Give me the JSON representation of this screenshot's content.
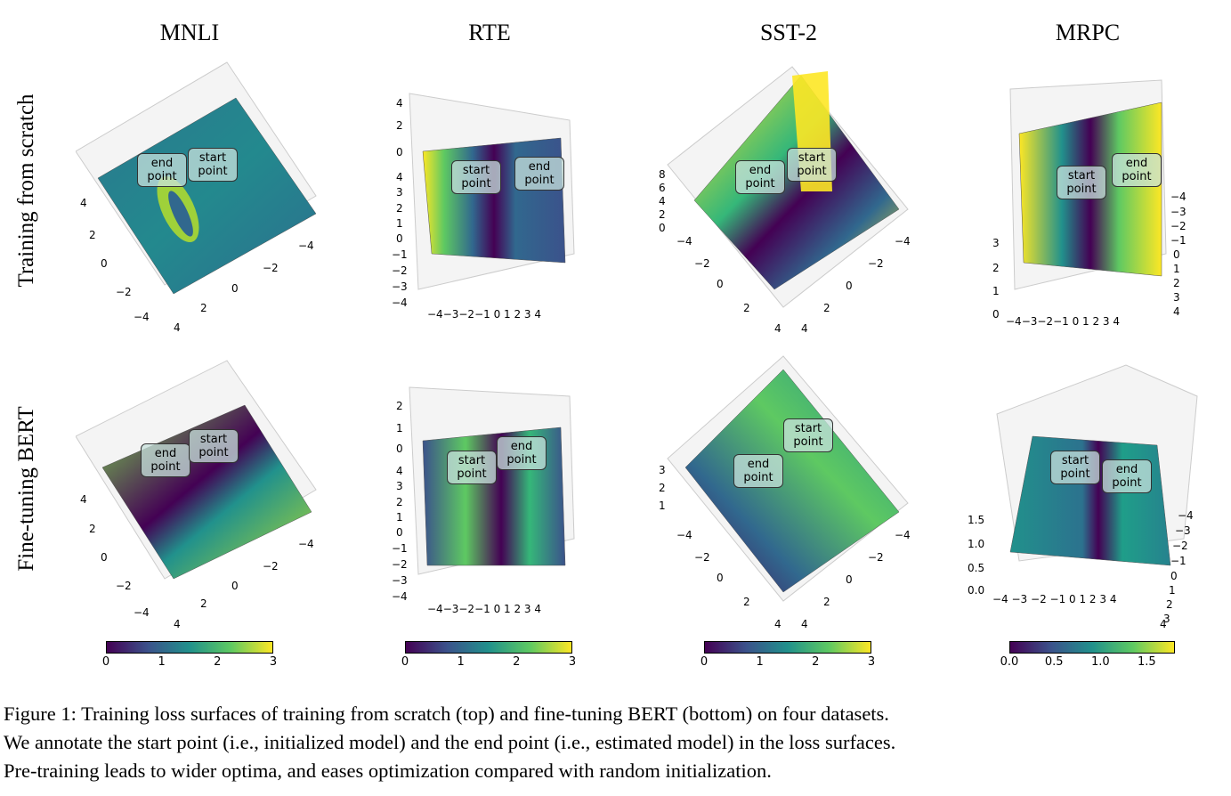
{
  "columns": [
    "MNLI",
    "RTE",
    "SST-2",
    "MRPC"
  ],
  "rows": [
    "Training from scratch",
    "Fine-tuning BERT"
  ],
  "annotations": {
    "start": "start point",
    "end": "end point"
  },
  "colorbars": [
    {
      "ticks": [
        "0",
        "1",
        "2",
        "3"
      ]
    },
    {
      "ticks": [
        "0",
        "1",
        "2",
        "3"
      ]
    },
    {
      "ticks": [
        "0",
        "1",
        "2",
        "3"
      ]
    },
    {
      "ticks": [
        "0.0",
        "0.5",
        "1.0",
        "1.5"
      ]
    }
  ],
  "caption": [
    "Figure 1: Training loss surfaces of training from scratch (top) and fine-tuning BERT (bottom) on four datasets.",
    "We annotate the start point (i.e., initialized model) and the end point (i.e., estimated model) in the loss surfaces.",
    "Pre-training leads to wider optima, and eases optimization compared with random initialization."
  ]
}
